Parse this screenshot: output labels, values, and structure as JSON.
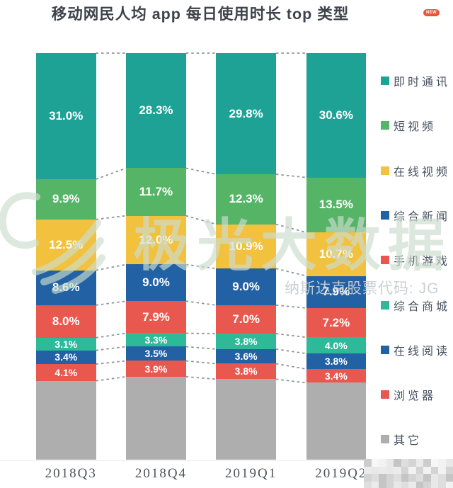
{
  "page": {
    "title": "移动网民人均 app 每日使用时长 top 类型",
    "badge": "NEW"
  },
  "watermark": {
    "brand": "极光大数据",
    "subtitle": "纳斯达克股票代码: JG"
  },
  "chart_data": {
    "type": "bar",
    "variant": "stacked-100-percent",
    "title": "移动网民人均 app 每日使用时长 top 类型",
    "categories": [
      "2018Q3",
      "2018Q4",
      "2019Q1",
      "2019Q2"
    ],
    "series": [
      {
        "name": "即时通讯",
        "color": "#1fa296",
        "values": [
          31.0,
          28.3,
          29.8,
          30.6
        ]
      },
      {
        "name": "短视频",
        "color": "#56b467",
        "values": [
          9.9,
          11.7,
          12.3,
          13.5
        ]
      },
      {
        "name": "在线视频",
        "color": "#f2c13e",
        "values": [
          12.5,
          12.0,
          10.9,
          10.7
        ]
      },
      {
        "name": "综合新闻",
        "color": "#2161a4",
        "values": [
          8.6,
          9.0,
          9.0,
          7.9
        ]
      },
      {
        "name": "手机游戏",
        "color": "#e8584e",
        "values": [
          8.0,
          7.9,
          7.0,
          7.2
        ]
      },
      {
        "name": "综合商城",
        "color": "#2eb999",
        "values": [
          3.1,
          3.3,
          3.8,
          4.0
        ]
      },
      {
        "name": "在线阅读",
        "color": "#2161a4",
        "values": [
          3.4,
          3.5,
          3.6,
          3.8
        ]
      },
      {
        "name": "浏览器",
        "color": "#e8584e",
        "values": [
          4.1,
          3.9,
          3.8,
          3.4
        ]
      },
      {
        "name": "其它",
        "color": "#aeaeae",
        "remainder": true,
        "show_labels": false
      }
    ],
    "total": 100,
    "value_suffix": "%",
    "ylim": [
      0,
      100
    ],
    "legend_position": "right",
    "segment_connectors": "dashed",
    "grid": false
  }
}
